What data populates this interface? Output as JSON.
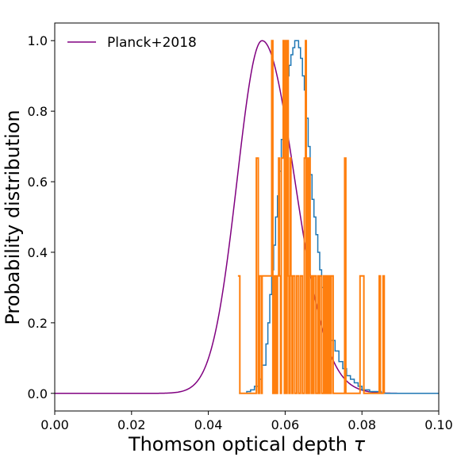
{
  "chart_data": {
    "type": "line",
    "xlabel": "Thomson optical depth",
    "xlabel_symbol": "τ",
    "ylabel": "Probability distribution",
    "xlim": [
      0.0,
      0.1
    ],
    "ylim": [
      -0.05,
      1.05
    ],
    "xticks": [
      "0.00",
      "0.02",
      "0.04",
      "0.06",
      "0.08",
      "0.10"
    ],
    "xtick_values": [
      0.0,
      0.02,
      0.04,
      0.06,
      0.08,
      0.1
    ],
    "yticks": [
      "0.0",
      "0.2",
      "0.4",
      "0.6",
      "0.8",
      "1.0"
    ],
    "ytick_values": [
      0.0,
      0.2,
      0.4,
      0.6,
      0.8,
      1.0
    ],
    "grid": false,
    "legend_position": "top-left",
    "series": [
      {
        "name": "Planck+2018",
        "kind": "line",
        "color": "#800080",
        "mu": 0.054,
        "sigma_left": 0.0065,
        "sigma_right": 0.0085,
        "x_range": [
          0.0,
          0.1
        ]
      },
      {
        "kind": "step",
        "color": "#1f77b4",
        "x": [
          0.048,
          0.05,
          0.051,
          0.052,
          0.053,
          0.054,
          0.055,
          0.0555,
          0.056,
          0.0565,
          0.057,
          0.0575,
          0.058,
          0.0585,
          0.059,
          0.0595,
          0.06,
          0.0605,
          0.061,
          0.0615,
          0.062,
          0.0625,
          0.063,
          0.0635,
          0.064,
          0.0645,
          0.065,
          0.0655,
          0.066,
          0.0665,
          0.067,
          0.0675,
          0.068,
          0.0685,
          0.069,
          0.0695,
          0.07,
          0.0705,
          0.071,
          0.072,
          0.073,
          0.074,
          0.075,
          0.076,
          0.077,
          0.078,
          0.079,
          0.08,
          0.082,
          0.085,
          0.1
        ],
        "y": [
          0.0,
          0.005,
          0.01,
          0.02,
          0.04,
          0.08,
          0.14,
          0.2,
          0.28,
          0.35,
          0.42,
          0.5,
          0.56,
          0.63,
          0.72,
          0.8,
          0.86,
          0.9,
          0.93,
          0.96,
          0.98,
          1.0,
          1.0,
          0.98,
          0.95,
          0.9,
          0.86,
          0.78,
          0.7,
          0.62,
          0.55,
          0.5,
          0.45,
          0.4,
          0.35,
          0.3,
          0.26,
          0.23,
          0.2,
          0.15,
          0.12,
          0.09,
          0.07,
          0.05,
          0.04,
          0.03,
          0.02,
          0.01,
          0.005,
          0.0,
          0.0
        ]
      },
      {
        "kind": "step",
        "color": "#ff7f0e",
        "x": [
          0.0477,
          0.0482,
          0.0525,
          0.053,
          0.0533,
          0.0538,
          0.054,
          0.0565,
          0.0568,
          0.057,
          0.0573,
          0.0575,
          0.0578,
          0.058,
          0.0583,
          0.0585,
          0.0588,
          0.059,
          0.0595,
          0.0598,
          0.06,
          0.0603,
          0.0605,
          0.0608,
          0.061,
          0.0613,
          0.0615,
          0.0618,
          0.062,
          0.0625,
          0.063,
          0.0635,
          0.064,
          0.0645,
          0.065,
          0.0653,
          0.0655,
          0.0658,
          0.066,
          0.0663,
          0.0665,
          0.0668,
          0.067,
          0.0673,
          0.0675,
          0.068,
          0.0685,
          0.0688,
          0.069,
          0.0695,
          0.07,
          0.0703,
          0.0705,
          0.0708,
          0.071,
          0.0713,
          0.0715,
          0.0718,
          0.072,
          0.0725,
          0.0755,
          0.0758,
          0.077,
          0.0795,
          0.0805,
          0.0845,
          0.0848,
          0.0855,
          0.0858
        ],
        "y": [
          0.333,
          0.0,
          0.667,
          0.0,
          0.333,
          0.0,
          0.333,
          1.0,
          0.0,
          0.333,
          0.0,
          0.333,
          0.0,
          0.333,
          0.667,
          0.333,
          0.0,
          0.667,
          1.0,
          0.0,
          1.0,
          0.0,
          1.0,
          0.333,
          0.0,
          0.667,
          0.333,
          0.0,
          0.333,
          0.0,
          0.333,
          0.0,
          0.333,
          0.0,
          0.667,
          1.0,
          0.0,
          0.667,
          0.0,
          0.667,
          0.333,
          0.0,
          0.333,
          0.0,
          0.333,
          0.0,
          0.333,
          0.0,
          0.333,
          0.0,
          0.333,
          0.0,
          0.333,
          0.0,
          0.333,
          0.0,
          0.333,
          0.0,
          0.333,
          0.0,
          0.667,
          0.0,
          0.0,
          0.333,
          0.0,
          0.333,
          0.0,
          0.333,
          0.0
        ]
      }
    ]
  }
}
